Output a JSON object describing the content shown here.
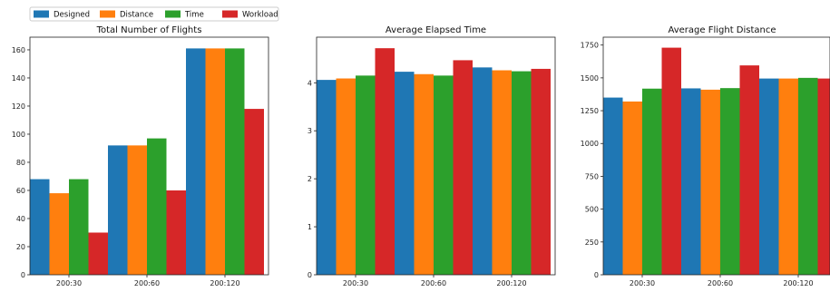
{
  "legend": {
    "entries": [
      {
        "name": "Designed",
        "color": "#1f77b4"
      },
      {
        "name": "Distance",
        "color": "#ff7f0e"
      },
      {
        "name": "Time",
        "color": "#2ca02c"
      },
      {
        "name": "Workload",
        "color": "#d62728"
      }
    ]
  },
  "chart_data": [
    {
      "type": "bar",
      "title": "Total Number of Flights",
      "categories": [
        "200:30",
        "200:60",
        "200:120"
      ],
      "ylim": [
        0,
        169
      ],
      "yticks": [
        0,
        20,
        40,
        60,
        80,
        100,
        120,
        140,
        160
      ],
      "series": [
        {
          "name": "Designed",
          "values": [
            68,
            92,
            161
          ]
        },
        {
          "name": "Distance",
          "values": [
            58,
            92,
            161
          ]
        },
        {
          "name": "Time",
          "values": [
            68,
            97,
            161
          ]
        },
        {
          "name": "Workload",
          "values": [
            30,
            60,
            118
          ]
        }
      ]
    },
    {
      "type": "bar",
      "title": "Average Elapsed Time",
      "categories": [
        "200:30",
        "200:60",
        "200:120"
      ],
      "ylim": [
        0,
        4.95
      ],
      "yticks": [
        0,
        1,
        2,
        3,
        4
      ],
      "series": [
        {
          "name": "Designed",
          "values": [
            4.06,
            4.23,
            4.32
          ]
        },
        {
          "name": "Distance",
          "values": [
            4.09,
            4.18,
            4.26
          ]
        },
        {
          "name": "Time",
          "values": [
            4.15,
            4.15,
            4.24
          ]
        },
        {
          "name": "Workload",
          "values": [
            4.72,
            4.47,
            4.29
          ]
        }
      ]
    },
    {
      "type": "bar",
      "title": "Average Flight Distance",
      "categories": [
        "200:30",
        "200:60",
        "200:120"
      ],
      "ylim": [
        0,
        1810
      ],
      "yticks": [
        0,
        250,
        500,
        750,
        1000,
        1250,
        1500,
        1750
      ],
      "series": [
        {
          "name": "Designed",
          "values": [
            1350,
            1420,
            1495
          ]
        },
        {
          "name": "Distance",
          "values": [
            1320,
            1410,
            1495
          ]
        },
        {
          "name": "Time",
          "values": [
            1418,
            1422,
            1500
          ]
        },
        {
          "name": "Workload",
          "values": [
            1730,
            1595,
            1495
          ]
        }
      ]
    }
  ]
}
